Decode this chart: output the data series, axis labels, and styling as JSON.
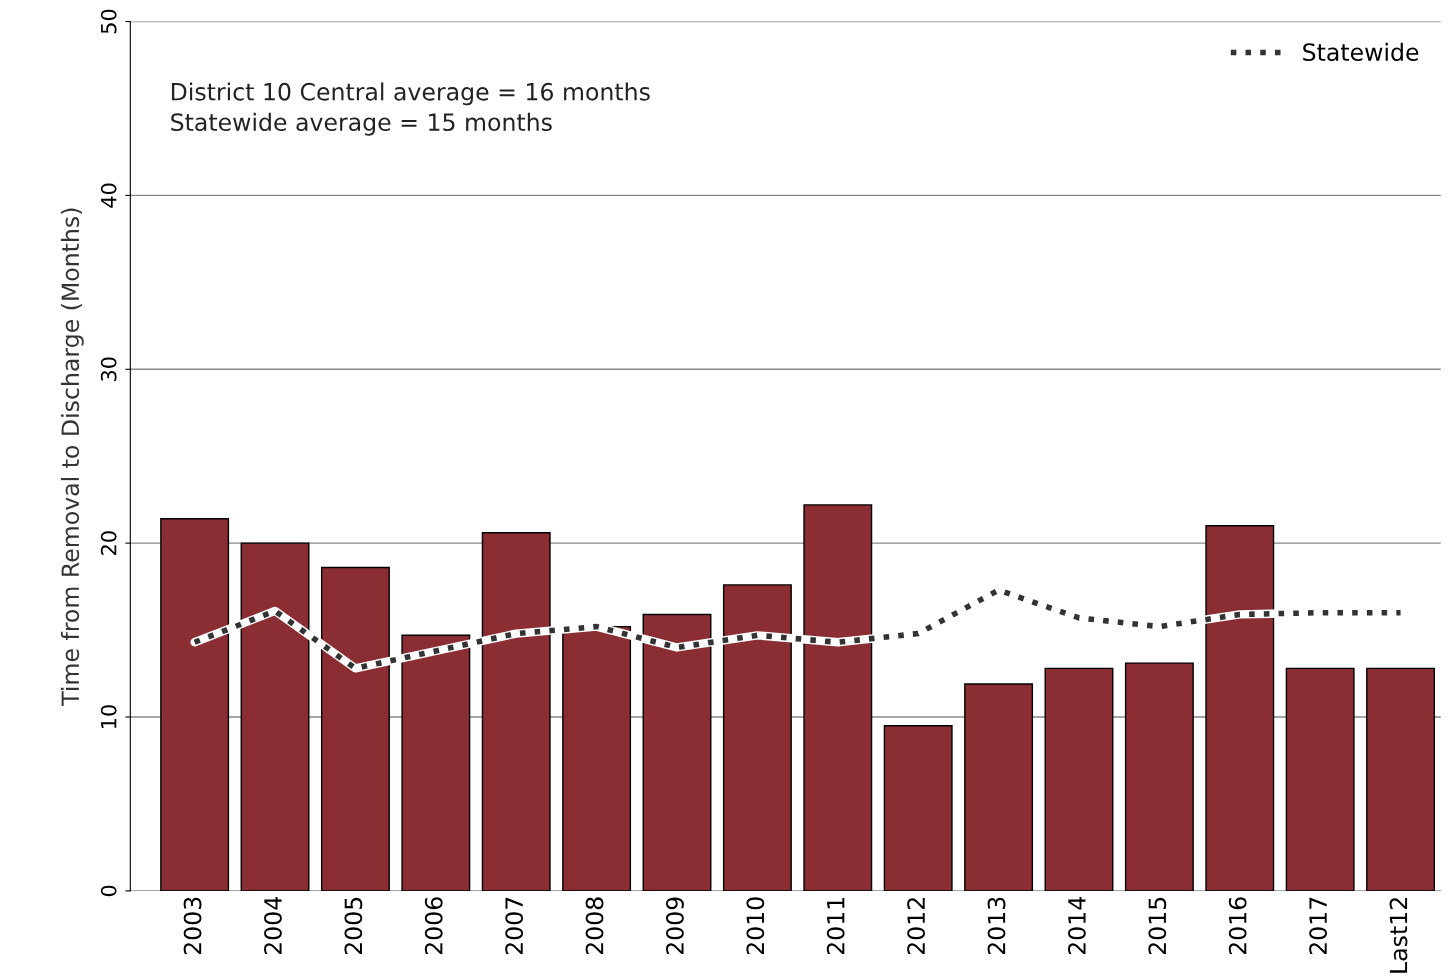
{
  "chart_data": {
    "type": "bar",
    "ylabel": "Time from Removal to Discharge (Months)",
    "categories": [
      "2003",
      "2004",
      "2005",
      "2006",
      "2007",
      "2008",
      "2009",
      "2010",
      "2011",
      "2012",
      "2013",
      "2014",
      "2015",
      "2016",
      "2017",
      "Last12"
    ],
    "series": [
      {
        "color": "#8b2e33",
        "values": [
          21.4,
          20.0,
          18.6,
          14.7,
          20.6,
          15.2,
          15.9,
          17.6,
          22.2,
          9.5,
          11.9,
          12.8,
          13.1,
          21.0,
          12.8,
          12.8
        ]
      },
      {
        "type": "line",
        "name": "Statewide",
        "color": "#333333",
        "line_style": "dotted",
        "values": [
          14.3,
          16.1,
          12.8,
          13.8,
          14.8,
          15.2,
          14.0,
          14.7,
          14.3,
          14.8,
          17.3,
          15.7,
          15.2,
          15.9,
          16.0,
          16.0
        ]
      }
    ],
    "ylim": [
      0,
      50
    ],
    "yticks": [
      0,
      10,
      20,
      30,
      40,
      50
    ],
    "grid": "y",
    "legend": "top right",
    "annotations": [
      "District 10 Central average = 16 months",
      "Statewide average = 15 months"
    ]
  }
}
